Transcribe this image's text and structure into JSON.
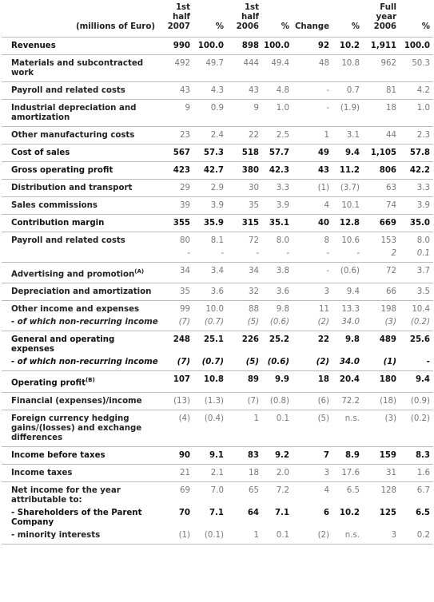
{
  "header": {
    "label": "(millions of Euro)",
    "columns": [
      "1st half 2007",
      "%",
      "1st half 2006",
      "%",
      "Change",
      "%",
      "Full year 2006",
      "%"
    ]
  },
  "rows": [
    {
      "bold": true,
      "lines": [
        {
          "label": "Revenues",
          "cells": [
            "990",
            "100.0",
            "898",
            "100.0",
            "92",
            "10.2",
            "1,911",
            "100.0"
          ]
        }
      ]
    },
    {
      "lines": [
        {
          "label": "Materials and subcontracted work",
          "cells": [
            "492",
            "49.7",
            "444",
            "49.4",
            "48",
            "10.8",
            "962",
            "50.3"
          ]
        }
      ]
    },
    {
      "lines": [
        {
          "label": "Payroll and related costs",
          "cells": [
            "43",
            "4.3",
            "43",
            "4.8",
            "-",
            "0.7",
            "81",
            "4.2"
          ]
        }
      ]
    },
    {
      "lines": [
        {
          "label": "Industrial depreciation and amortization",
          "cells": [
            "9",
            "0.9",
            "9",
            "1.0",
            "-",
            "(1.9)",
            "18",
            "1.0"
          ]
        }
      ]
    },
    {
      "lines": [
        {
          "label": "Other manufacturing costs",
          "cells": [
            "23",
            "2.4",
            "22",
            "2.5",
            "1",
            "3.1",
            "44",
            "2.3"
          ]
        }
      ]
    },
    {
      "bold": true,
      "lines": [
        {
          "label": "Cost of sales",
          "cells": [
            "567",
            "57.3",
            "518",
            "57.7",
            "49",
            "9.4",
            "1,105",
            "57.8"
          ]
        }
      ]
    },
    {
      "bold": true,
      "lines": [
        {
          "label": "Gross operating profit",
          "cells": [
            "423",
            "42.7",
            "380",
            "42.3",
            "43",
            "11.2",
            "806",
            "42.2"
          ]
        }
      ]
    },
    {
      "lines": [
        {
          "label": "Distribution and transport",
          "cells": [
            "29",
            "2.9",
            "30",
            "3.3",
            "(1)",
            "(3.7)",
            "63",
            "3.3"
          ]
        }
      ]
    },
    {
      "lines": [
        {
          "label": "Sales commissions",
          "cells": [
            "39",
            "3.9",
            "35",
            "3.9",
            "4",
            "10.1",
            "74",
            "3.9"
          ]
        }
      ]
    },
    {
      "bold": true,
      "lines": [
        {
          "label": "Contribution margin",
          "cells": [
            "355",
            "35.9",
            "315",
            "35.1",
            "40",
            "12.8",
            "669",
            "35.0"
          ]
        }
      ]
    },
    {
      "lines": [
        {
          "label": "Payroll and related costs",
          "cells": [
            "80",
            "8.1",
            "72",
            "8.0",
            "8",
            "10.6",
            "153",
            "8.0"
          ]
        },
        {
          "italic": true,
          "cells": [
            "-",
            "-",
            "-",
            "-",
            "-",
            "-",
            "2",
            "0.1"
          ]
        }
      ]
    },
    {
      "lines": [
        {
          "label": "Advertising and promotion",
          "note": "(A)",
          "cells": [
            "34",
            "3.4",
            "34",
            "3.8",
            "-",
            "(0.6)",
            "72",
            "3.7"
          ]
        }
      ]
    },
    {
      "lines": [
        {
          "label": "Depreciation and amortization",
          "cells": [
            "35",
            "3.6",
            "32",
            "3.6",
            "3",
            "9.4",
            "66",
            "3.5"
          ]
        }
      ]
    },
    {
      "lines": [
        {
          "label": "Other income and expenses",
          "cells": [
            "99",
            "10.0",
            "88",
            "9.8",
            "11",
            "13.3",
            "198",
            "10.4"
          ]
        },
        {
          "italic": true,
          "label": "- of which non-recurring income",
          "cells": [
            "(7)",
            "(0.7)",
            "(5)",
            "(0.6)",
            "(2)",
            "34.0",
            "(3)",
            "(0.2)"
          ]
        }
      ]
    },
    {
      "bold": true,
      "lines": [
        {
          "label": "General and operating expenses",
          "cells": [
            "248",
            "25.1",
            "226",
            "25.2",
            "22",
            "9.8",
            "489",
            "25.6"
          ]
        },
        {
          "italic": true,
          "label": "- of which non-recurring income",
          "cells": [
            "(7)",
            "(0.7)",
            "(5)",
            "(0.6)",
            "(2)",
            "34.0",
            "(1)",
            "-"
          ]
        }
      ]
    },
    {
      "bold": true,
      "lines": [
        {
          "label": "Operating profit",
          "note": "(B)",
          "cells": [
            "107",
            "10.8",
            "89",
            "9.9",
            "18",
            "20.4",
            "180",
            "9.4"
          ]
        }
      ]
    },
    {
      "lines": [
        {
          "label": "Financial (expenses)/income",
          "cells": [
            "(13)",
            "(1.3)",
            "(7)",
            "(0.8)",
            "(6)",
            "72.2",
            "(18)",
            "(0.9)"
          ]
        }
      ]
    },
    {
      "lines": [
        {
          "label": "Foreign currency hedging gains/(losses) and exchange differences",
          "cells": [
            "(4)",
            "(0.4)",
            "1",
            "0.1",
            "(5)",
            "n.s.",
            "(3)",
            "(0.2)"
          ]
        }
      ]
    },
    {
      "bold": true,
      "lines": [
        {
          "label": "Income before taxes",
          "cells": [
            "90",
            "9.1",
            "83",
            "9.2",
            "7",
            "8.9",
            "159",
            "8.3"
          ]
        }
      ]
    },
    {
      "lines": [
        {
          "label": "Income taxes",
          "cells": [
            "21",
            "2.1",
            "18",
            "2.0",
            "3",
            "17.6",
            "31",
            "1.6"
          ]
        }
      ]
    },
    {
      "lines": [
        {
          "label": "Net income for the year attributable to:",
          "cells": [
            "69",
            "7.0",
            "65",
            "7.2",
            "4",
            "6.5",
            "128",
            "6.7"
          ]
        },
        {
          "bold": true,
          "label": "- Shareholders of the Parent Company",
          "cells": [
            "70",
            "7.1",
            "64",
            "7.1",
            "6",
            "10.2",
            "125",
            "6.5"
          ]
        },
        {
          "label": "- minority interests",
          "cells": [
            "(1)",
            "(0.1)",
            "1",
            "0.1",
            "(2)",
            "n.s.",
            "3",
            "0.2"
          ]
        }
      ]
    }
  ]
}
